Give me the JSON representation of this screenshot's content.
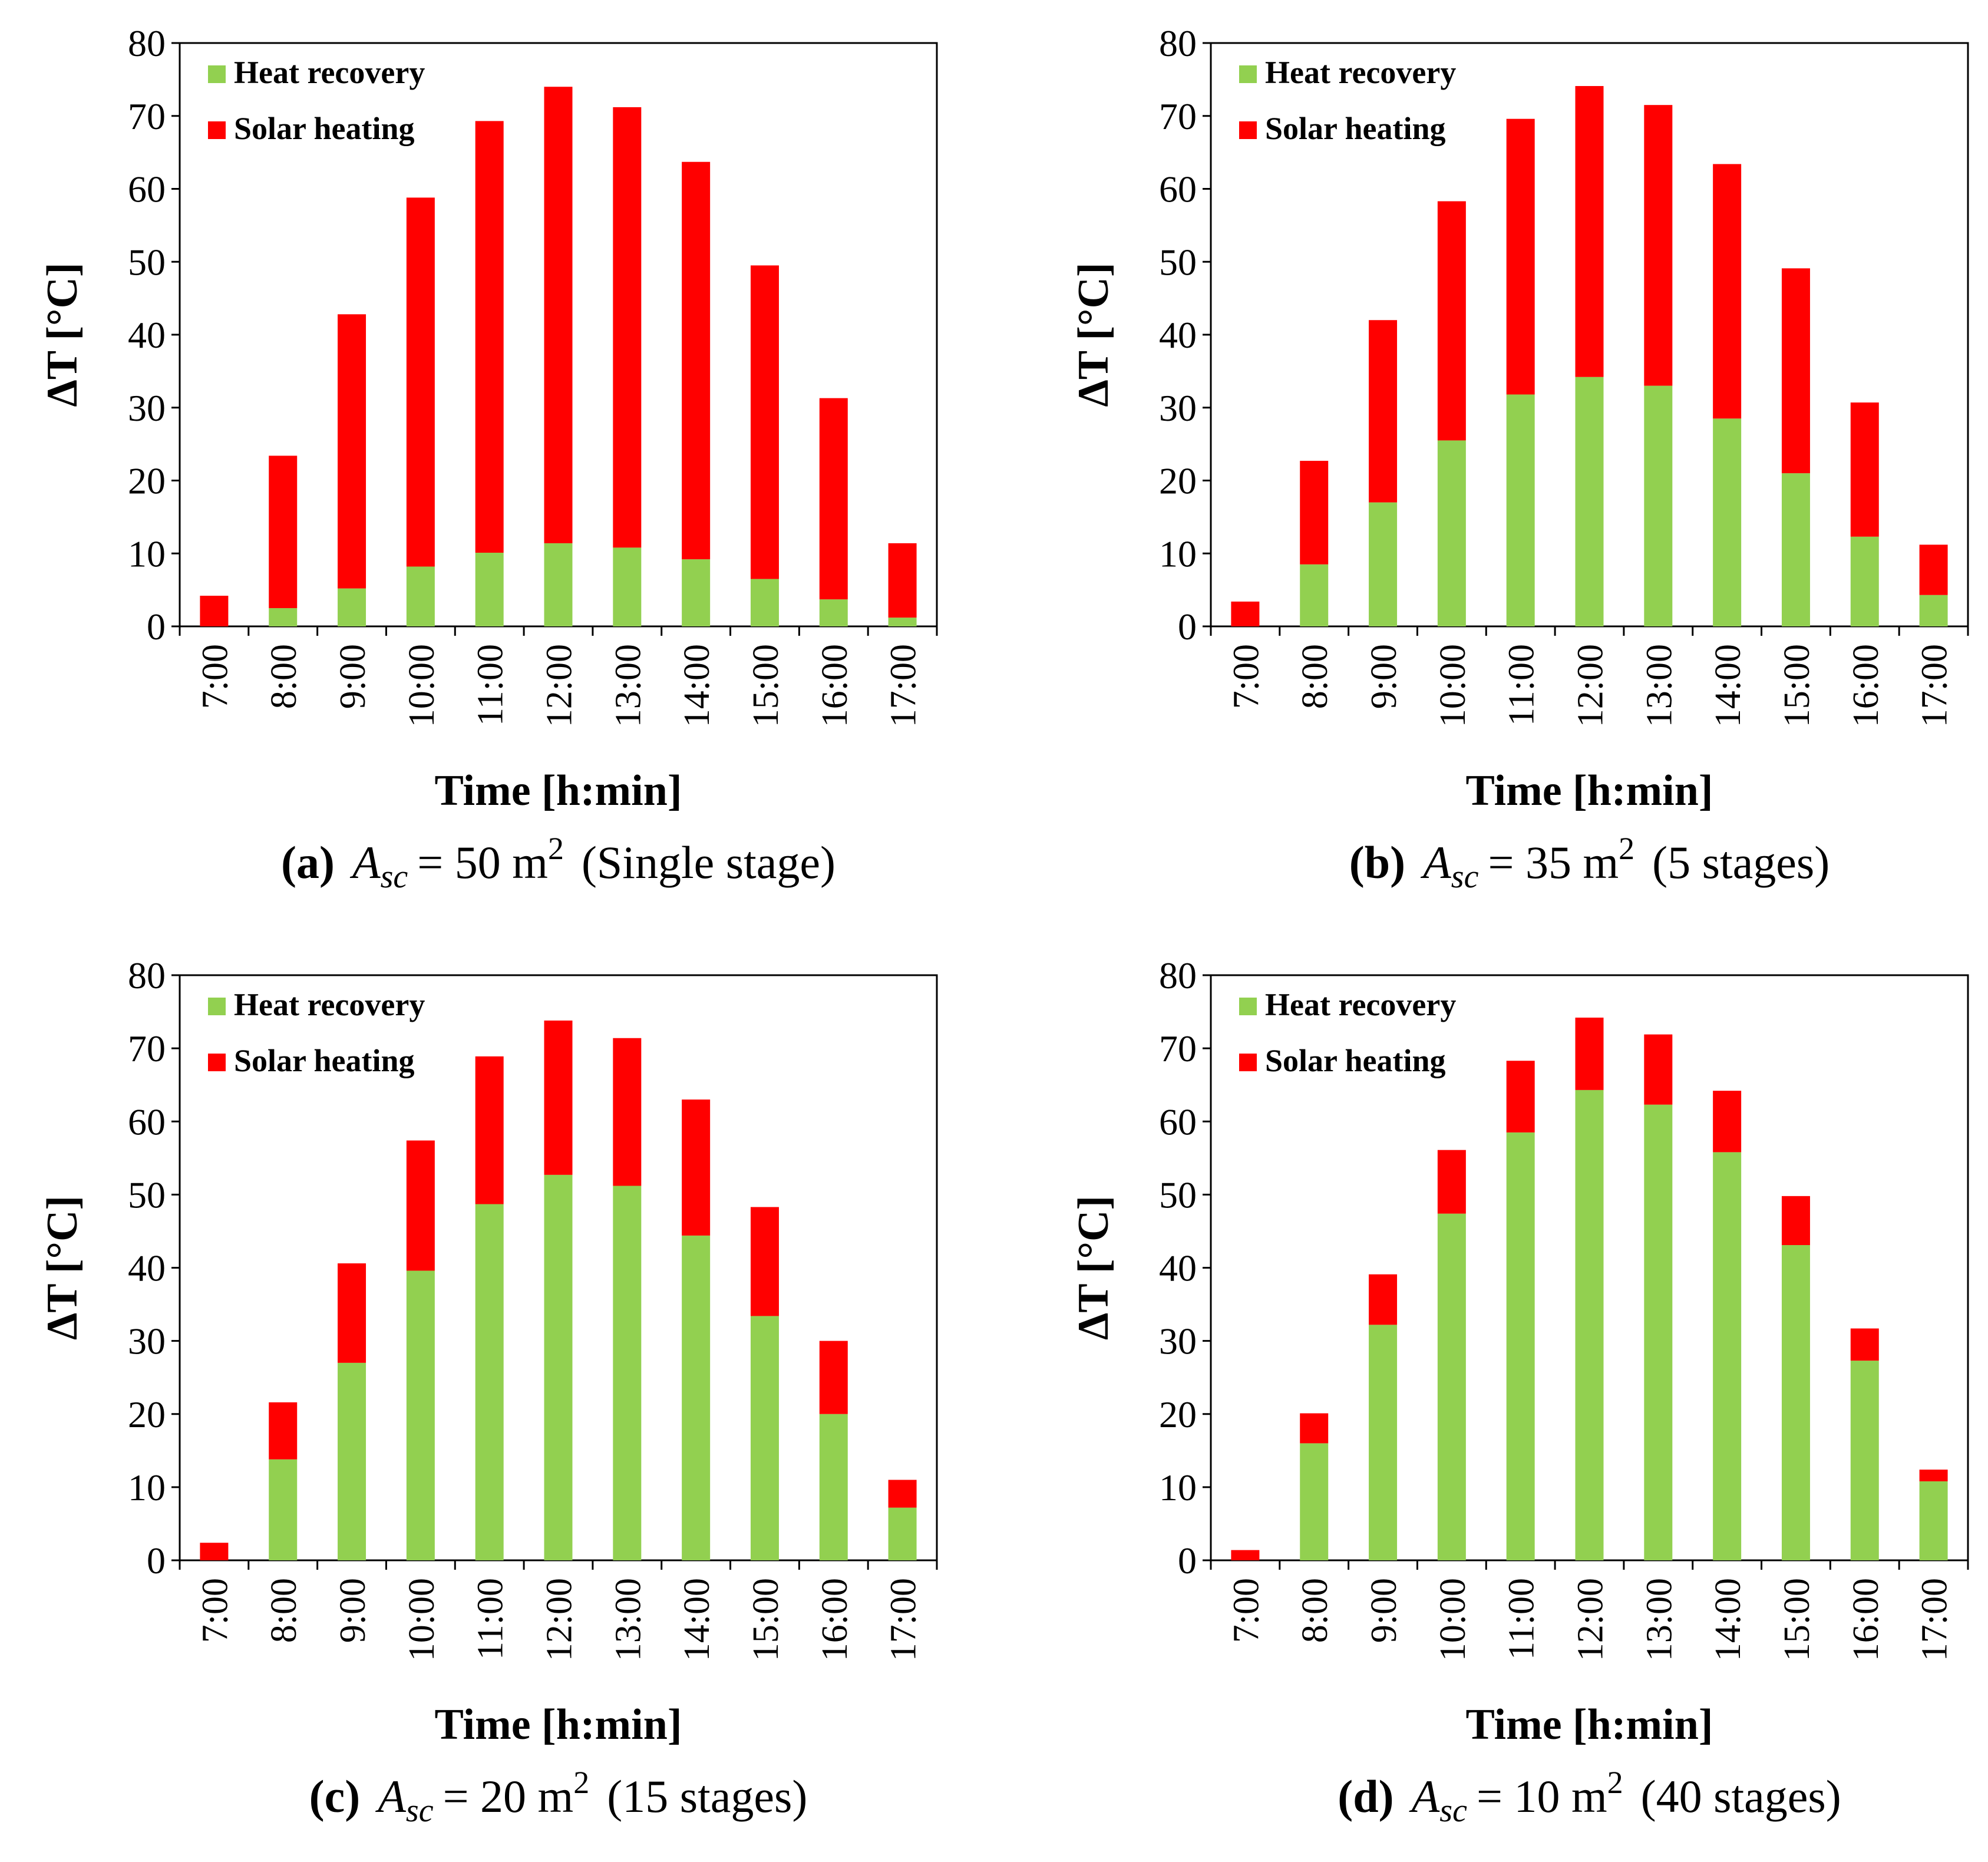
{
  "figure": {
    "panels": [
      {
        "label": "(a)",
        "caption_symbol": "A",
        "caption_subscript": "sc",
        "caption_equals": "= 50 m",
        "caption_sup": "2",
        "caption_note": "(Single stage)"
      },
      {
        "label": "(b)",
        "caption_symbol": "A",
        "caption_subscript": "sc",
        "caption_equals": "= 35 m",
        "caption_sup": "2",
        "caption_note": "(5 stages)"
      },
      {
        "label": "(c)",
        "caption_symbol": "A",
        "caption_subscript": "sc",
        "caption_equals": "= 20 m",
        "caption_sup": "2",
        "caption_note": "(15 stages)"
      },
      {
        "label": "(d)",
        "caption_symbol": "A",
        "caption_subscript": "sc",
        "caption_equals": "= 10 m",
        "caption_sup": "2",
        "caption_note": "(40 stages)"
      }
    ]
  },
  "colors": {
    "heat_recovery": "#92d050",
    "solar_heating": "#ff0000",
    "axis": "#000000"
  },
  "chart_data": [
    {
      "type": "bar",
      "stacked": true,
      "categories": [
        "7:00",
        "8:00",
        "9:00",
        "10:00",
        "11:00",
        "12:00",
        "13:00",
        "14:00",
        "15:00",
        "16:00",
        "17:00"
      ],
      "series": [
        {
          "name": "Heat recovery",
          "values": [
            0,
            2.5,
            5.2,
            8.2,
            10.1,
            11.4,
            10.8,
            9.2,
            6.5,
            3.7,
            1.2
          ]
        },
        {
          "name": "Solar heating",
          "values": [
            4.2,
            20.9,
            37.6,
            50.6,
            59.2,
            62.6,
            60.4,
            54.5,
            43.0,
            27.6,
            10.2
          ]
        }
      ],
      "xlabel": "Time [h:min]",
      "ylabel": "ΔT [°C]",
      "ylim": [
        0,
        80
      ],
      "yticks": [
        "0",
        "10",
        "20",
        "30",
        "40",
        "50",
        "60",
        "70",
        "80"
      ],
      "legend": "top-left",
      "grid": false
    },
    {
      "type": "bar",
      "stacked": true,
      "categories": [
        "7:00",
        "8:00",
        "9:00",
        "10:00",
        "11:00",
        "12:00",
        "13:00",
        "14:00",
        "15:00",
        "16:00",
        "17:00"
      ],
      "series": [
        {
          "name": "Heat recovery",
          "values": [
            0,
            8.5,
            17.0,
            25.5,
            31.8,
            34.2,
            33.0,
            28.5,
            21.0,
            12.3,
            4.3
          ]
        },
        {
          "name": "Solar heating",
          "values": [
            3.4,
            14.2,
            25.0,
            32.8,
            37.8,
            39.9,
            38.5,
            34.9,
            28.1,
            18.4,
            6.9
          ]
        }
      ],
      "xlabel": "Time [h:min]",
      "ylabel": "ΔT [°C]",
      "ylim": [
        0,
        80
      ],
      "yticks": [
        "0",
        "10",
        "20",
        "30",
        "40",
        "50",
        "60",
        "70",
        "80"
      ],
      "legend": "top-left",
      "grid": false
    },
    {
      "type": "bar",
      "stacked": true,
      "categories": [
        "7:00",
        "8:00",
        "9:00",
        "10:00",
        "11:00",
        "12:00",
        "13:00",
        "14:00",
        "15:00",
        "16:00",
        "17:00"
      ],
      "series": [
        {
          "name": "Heat recovery",
          "values": [
            0,
            13.8,
            27.0,
            39.6,
            48.7,
            52.7,
            51.2,
            44.4,
            33.4,
            20.0,
            7.2
          ]
        },
        {
          "name": "Solar heating",
          "values": [
            2.4,
            7.8,
            13.6,
            17.8,
            20.2,
            21.1,
            20.2,
            18.6,
            14.9,
            10.0,
            3.8
          ]
        }
      ],
      "xlabel": "Time [h:min]",
      "ylabel": "ΔT [°C]",
      "ylim": [
        0,
        80
      ],
      "yticks": [
        "0",
        "10",
        "20",
        "30",
        "40",
        "50",
        "60",
        "70",
        "80"
      ],
      "legend": "top-left",
      "grid": false
    },
    {
      "type": "bar",
      "stacked": true,
      "categories": [
        "7:00",
        "8:00",
        "9:00",
        "10:00",
        "11:00",
        "12:00",
        "13:00",
        "14:00",
        "15:00",
        "16:00",
        "17:00"
      ],
      "series": [
        {
          "name": "Heat recovery",
          "values": [
            0,
            16.0,
            32.2,
            47.4,
            58.5,
            64.3,
            62.3,
            55.8,
            43.1,
            27.3,
            10.8
          ]
        },
        {
          "name": "Solar heating",
          "values": [
            1.4,
            4.1,
            6.9,
            8.7,
            9.8,
            9.9,
            9.6,
            8.4,
            6.7,
            4.4,
            1.6
          ]
        }
      ],
      "xlabel": "Time [h:min]",
      "ylabel": "ΔT [°C]",
      "ylim": [
        0,
        80
      ],
      "yticks": [
        "0",
        "10",
        "20",
        "30",
        "40",
        "50",
        "60",
        "70",
        "80"
      ],
      "legend": "top-left",
      "grid": false
    }
  ]
}
